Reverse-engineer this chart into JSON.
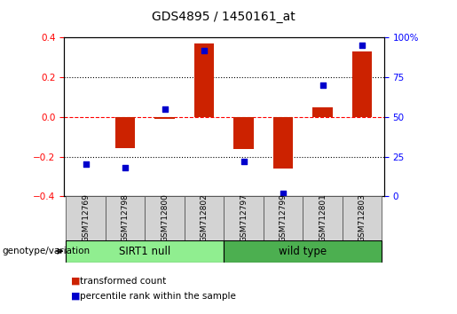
{
  "title": "GDS4895 / 1450161_at",
  "samples": [
    "GSM712769",
    "GSM712798",
    "GSM712800",
    "GSM712802",
    "GSM712797",
    "GSM712799",
    "GSM712801",
    "GSM712803"
  ],
  "transformed_count": [
    0.0,
    -0.155,
    -0.01,
    0.37,
    -0.16,
    -0.26,
    0.05,
    0.33
  ],
  "percentile_rank": [
    20,
    18,
    55,
    92,
    22,
    2,
    70,
    95
  ],
  "groups": [
    {
      "label": "SIRT1 null",
      "color": "#90EE90",
      "indices": [
        0,
        1,
        2,
        3
      ]
    },
    {
      "label": "wild type",
      "color": "#4CAF50",
      "indices": [
        4,
        5,
        6,
        7
      ]
    }
  ],
  "bar_color": "#CC2200",
  "scatter_color": "#0000CC",
  "left_ylim": [
    -0.4,
    0.4
  ],
  "right_ylim": [
    0,
    100
  ],
  "left_yticks": [
    -0.4,
    -0.2,
    0.0,
    0.2,
    0.4
  ],
  "right_yticks": [
    0,
    25,
    50,
    75,
    100
  ],
  "right_yticklabels": [
    "0",
    "25",
    "50",
    "75",
    "100%"
  ],
  "hline_y": 0.0,
  "dotted_hlines": [
    -0.2,
    0.2
  ],
  "bar_width": 0.5,
  "genotype_label": "genotype/variation",
  "legend_items": [
    {
      "label": "transformed count",
      "color": "#CC2200"
    },
    {
      "label": "percentile rank within the sample",
      "color": "#0000CC"
    }
  ],
  "background_color": "#ffffff",
  "plot_bg_color": "#ffffff",
  "title_fontsize": 10,
  "tick_fontsize": 7.5,
  "label_fontsize": 8,
  "group_label_fontsize": 8.5,
  "sample_fontsize": 6.5
}
